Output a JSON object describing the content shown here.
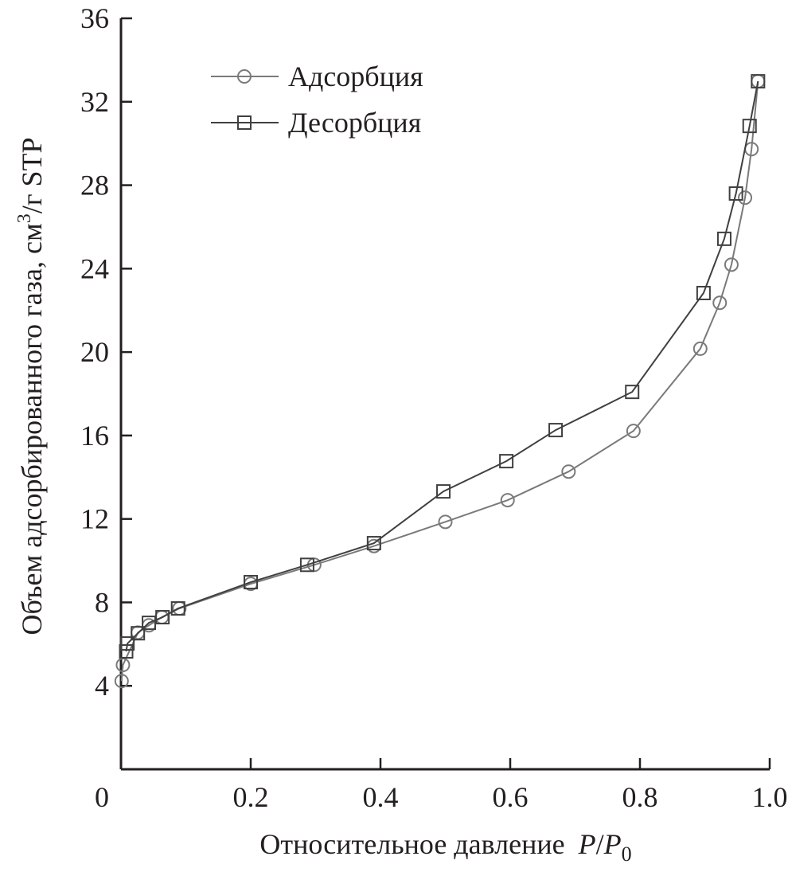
{
  "chart_data": {
    "type": "line",
    "title": "",
    "xlabel": "Относительное давление",
    "xlabel_var": {
      "p": "P",
      "slash": "/",
      "p0": "P",
      "sub": "0"
    },
    "ylabel": "Объем адсорбированного газа, см",
    "ylabel_sup": "3",
    "ylabel_tail": "/г STP",
    "xlim": [
      0,
      1.0
    ],
    "ylim": [
      0,
      36
    ],
    "xticks": [
      "0",
      "0.2",
      "0.4",
      "0.6",
      "0.8",
      "1.0"
    ],
    "xtick_values": [
      0,
      0.2,
      0.4,
      0.6,
      0.8,
      1.0
    ],
    "yticks": [
      "4",
      "8",
      "12",
      "16",
      "20",
      "24",
      "28",
      "32",
      "36"
    ],
    "ytick_values": [
      4,
      8,
      12,
      16,
      20,
      24,
      28,
      32,
      36
    ],
    "grid": false,
    "legend_position": "top-left",
    "series": [
      {
        "name": "Адсорбция",
        "marker": "circle",
        "color": "#7a7a7a",
        "x": [
          0.001,
          0.003,
          0.026,
          0.043,
          0.063,
          0.09,
          0.2,
          0.298,
          0.39,
          0.5,
          0.596,
          0.69,
          0.79,
          0.893,
          0.923,
          0.941,
          0.962,
          0.972,
          0.982
        ],
        "y": [
          4.23,
          5.0,
          6.55,
          6.9,
          7.29,
          7.71,
          8.89,
          9.8,
          10.7,
          11.86,
          12.9,
          14.27,
          16.22,
          20.16,
          22.36,
          24.19,
          27.4,
          29.73,
          32.98
        ]
      },
      {
        "name": "Десорбция",
        "marker": "square",
        "color": "#404040",
        "x": [
          0.982,
          0.969,
          0.948,
          0.93,
          0.898,
          0.788,
          0.67,
          0.594,
          0.497,
          0.39,
          0.287,
          0.2,
          0.088,
          0.064,
          0.043,
          0.026,
          0.01,
          0.008
        ],
        "y": [
          32.98,
          30.84,
          27.6,
          25.43,
          22.83,
          18.09,
          16.26,
          14.77,
          13.32,
          10.84,
          9.8,
          8.97,
          7.71,
          7.29,
          7.02,
          6.52,
          6.03,
          5.65
        ]
      }
    ]
  }
}
